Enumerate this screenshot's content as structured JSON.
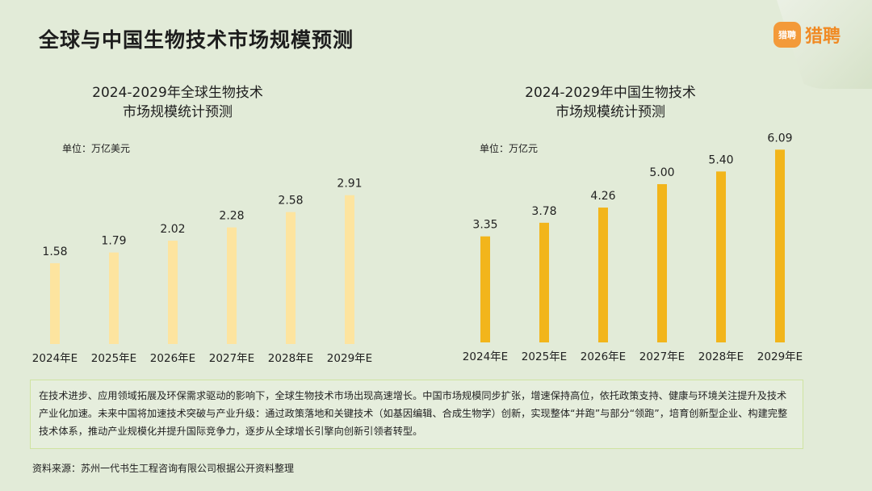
{
  "page": {
    "title": "全球与中国生物技术市场规模预测",
    "logo": {
      "icon_text": "猎聘",
      "brand": "猎聘",
      "color": "#f39a3a"
    }
  },
  "global_chart": {
    "title_line1": "2024-2029年全球生物技术",
    "title_line2": "市场规模统计预测",
    "unit": "单位：万亿美元"
  },
  "china_chart": {
    "title_line1": "2024-2029年中国生物技术",
    "title_line2": "市场规模统计预测",
    "unit": "单位：万亿元"
  },
  "chart_data": [
    {
      "type": "bar",
      "title": "2024-2029年全球生物技术市场规模统计预测",
      "ylabel": "单位：万亿美元",
      "categories": [
        "2024年E",
        "2025年E",
        "2026年E",
        "2027年E",
        "2028年E",
        "2029年E"
      ],
      "values": [
        1.58,
        1.79,
        2.02,
        2.28,
        2.58,
        2.91
      ],
      "value_labels": [
        "1.58",
        "1.79",
        "2.02",
        "2.28",
        "2.58",
        "2.91"
      ],
      "ylim": [
        0,
        3.0
      ],
      "color": "#fde49f",
      "grid": false
    },
    {
      "type": "bar",
      "title": "2024-2029年中国生物技术市场规模统计预测",
      "ylabel": "单位：万亿元",
      "categories": [
        "2024年E",
        "2025年E",
        "2026年E",
        "2027年E",
        "2028年E",
        "2029年E"
      ],
      "values": [
        3.35,
        3.78,
        4.26,
        5.0,
        5.4,
        6.09
      ],
      "value_labels": [
        "3.35",
        "3.78",
        "4.26",
        "5.00",
        "5.40",
        "6.09"
      ],
      "ylim": [
        0,
        6.2
      ],
      "color": "#f2b51b",
      "grid": false
    }
  ],
  "summary": {
    "text": "在技术进步、应用领域拓展及环保需求驱动的影响下，全球生物技术市场出现高速增长。中国市场规模同步扩张，增速保持高位，依托政策支持、健康与环境关注提升及技术产业化加速。未来中国将加速技术突破与产业升级：通过政策落地和关键技术（如基因编辑、合成生物学）创新，实现整体“并跑”与部分“领跑”，培育创新型企业、构建完整技术体系，推动产业规模化并提升国际竞争力，逐步从全球增长引擎向创新引领者转型。"
  },
  "source": {
    "text": "资料来源：苏州一代书生工程咨询有限公司根据公开资料整理"
  }
}
